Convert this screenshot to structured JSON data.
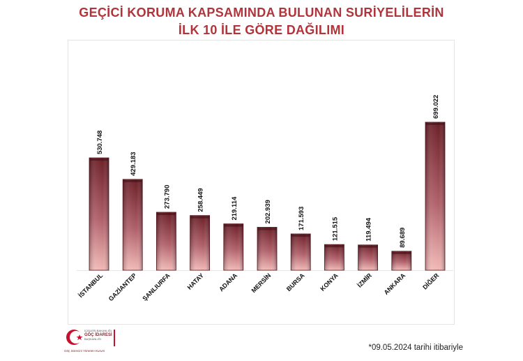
{
  "header": {
    "title_line1": "GEÇİCİ KORUMA KAPSAMINDA BULUNAN SURİYELİLERİN",
    "title_line2": "İLK 10 İLE GÖRE DAĞILIMI"
  },
  "chart_data": {
    "type": "bar",
    "categories": [
      "İSTANBUL",
      "GAZİANTEP",
      "ŞANLIURFA",
      "HATAY",
      "ADANA",
      "MERSİN",
      "BURSA",
      "KONYA",
      "İZMİR",
      "ANKARA",
      "DİĞER"
    ],
    "values": [
      530748,
      429183,
      273790,
      258449,
      219114,
      202939,
      171593,
      121515,
      119494,
      89689,
      699022
    ],
    "value_labels": [
      "530.748",
      "429.183",
      "273.790",
      "258.449",
      "219.114",
      "202.939",
      "171.593",
      "121.515",
      "119.494",
      "89.689",
      "699.022"
    ],
    "title": "GEÇİCİ KORUMA KAPSAMINDA BULUNAN SURİYELİLERİN İLK 10 İLE GÖRE DAĞILIMI",
    "xlabel": "",
    "ylabel": "",
    "ylim": [
      0,
      700000
    ],
    "grid": false,
    "legend": "none",
    "colors": {
      "bar_top": "#6b1f27",
      "bar_bottom": "#f1b9b6",
      "bar_edge": "#5a1a20",
      "title": "#b0343a"
    }
  },
  "logo": {
    "name_line1": "İÇİŞLERİ BAKANLIĞI",
    "name_line2": "GÖÇ İDARESİ",
    "name_line3": "BAŞKANLIĞI",
    "tagline": "Göç Sürecini Yöneten Kurum"
  },
  "footnote": "*09.05.2024 tarihi itibariyle"
}
